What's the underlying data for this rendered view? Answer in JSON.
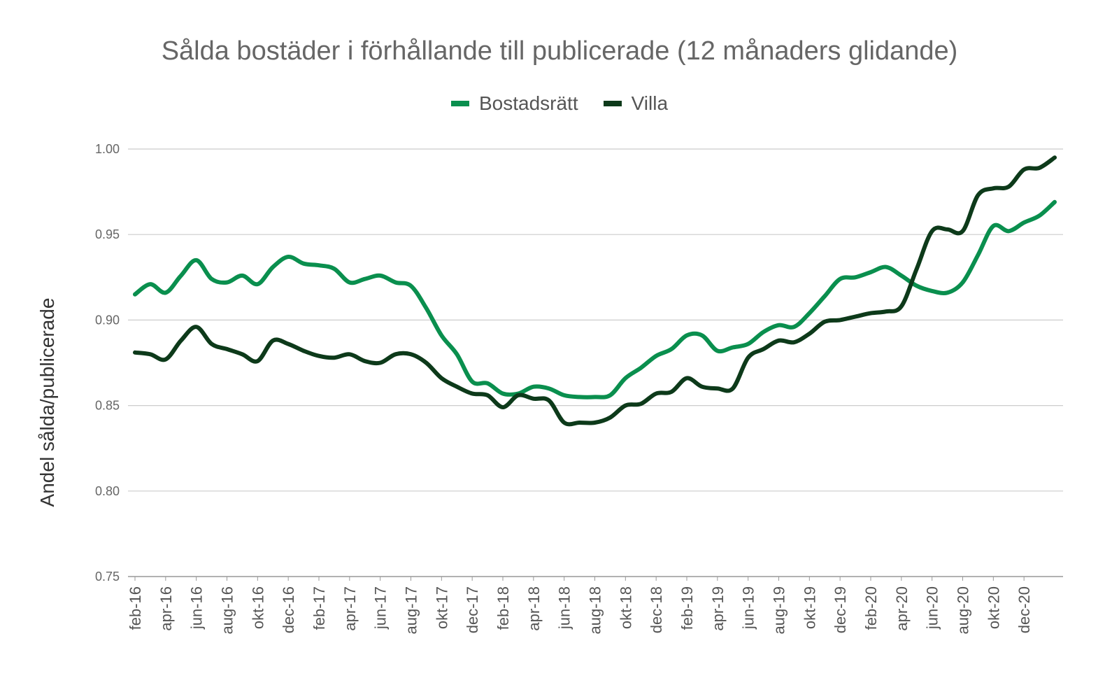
{
  "chart_data": {
    "type": "line",
    "title": "Sålda bostäder i förhållande till publicerade (12 månaders glidande)",
    "xlabel": "",
    "ylabel": "Andel sålda/publicerade",
    "ylim": [
      0.75,
      1.0
    ],
    "yticks": [
      "1.00",
      "0.95",
      "0.90",
      "0.85",
      "0.80",
      "0.75"
    ],
    "grid": true,
    "legend_position": "top",
    "x_tick_labels": [
      "feb-16",
      "apr-16",
      "jun-16",
      "aug-16",
      "okt-16",
      "dec-16",
      "feb-17",
      "apr-17",
      "jun-17",
      "aug-17",
      "okt-17",
      "dec-17",
      "feb-18",
      "apr-18",
      "jun-18",
      "aug-18",
      "okt-18",
      "dec-18",
      "feb-19",
      "apr-19",
      "jun-19",
      "aug-19",
      "okt-19",
      "dec-19",
      "feb-20",
      "apr-20",
      "jun-20",
      "aug-20",
      "okt-20",
      "dec-20"
    ],
    "x": [
      "feb-16",
      "mar-16",
      "apr-16",
      "maj-16",
      "jun-16",
      "jul-16",
      "aug-16",
      "sep-16",
      "okt-16",
      "nov-16",
      "dec-16",
      "jan-17",
      "feb-17",
      "mar-17",
      "apr-17",
      "maj-17",
      "jun-17",
      "jul-17",
      "aug-17",
      "sep-17",
      "okt-17",
      "nov-17",
      "dec-17",
      "jan-18",
      "feb-18",
      "mar-18",
      "apr-18",
      "maj-18",
      "jun-18",
      "jul-18",
      "aug-18",
      "sep-18",
      "okt-18",
      "nov-18",
      "dec-18",
      "jan-19",
      "feb-19",
      "mar-19",
      "apr-19",
      "maj-19",
      "jun-19",
      "jul-19",
      "aug-19",
      "sep-19",
      "okt-19",
      "nov-19",
      "dec-19",
      "jan-20",
      "feb-20",
      "mar-20",
      "apr-20",
      "maj-20",
      "jun-20",
      "jul-20",
      "aug-20",
      "sep-20",
      "okt-20",
      "nov-20",
      "dec-20",
      "jan-21",
      "feb-21"
    ],
    "series": [
      {
        "name": "Bostadsrätt",
        "color": "#0a8f4e",
        "values": [
          0.915,
          0.921,
          0.916,
          0.926,
          0.935,
          0.924,
          0.922,
          0.926,
          0.921,
          0.931,
          0.937,
          0.933,
          0.932,
          0.93,
          0.922,
          0.924,
          0.926,
          0.922,
          0.92,
          0.907,
          0.891,
          0.88,
          0.864,
          0.863,
          0.857,
          0.857,
          0.861,
          0.86,
          0.856,
          0.855,
          0.855,
          0.856,
          0.866,
          0.872,
          0.879,
          0.883,
          0.891,
          0.891,
          0.882,
          0.884,
          0.886,
          0.893,
          0.897,
          0.896,
          0.904,
          0.914,
          0.924,
          0.925,
          0.928,
          0.931,
          0.926,
          0.92,
          0.917,
          0.916,
          0.922,
          0.938,
          0.955,
          0.952,
          0.957,
          0.961,
          0.969
        ]
      },
      {
        "name": "Villa",
        "color": "#0d3a1a",
        "values": [
          0.881,
          0.88,
          0.877,
          0.888,
          0.896,
          0.886,
          0.883,
          0.88,
          0.876,
          0.888,
          0.886,
          0.882,
          0.879,
          0.878,
          0.88,
          0.876,
          0.875,
          0.88,
          0.88,
          0.875,
          0.866,
          0.861,
          0.857,
          0.856,
          0.849,
          0.856,
          0.854,
          0.853,
          0.84,
          0.84,
          0.84,
          0.843,
          0.85,
          0.851,
          0.857,
          0.858,
          0.866,
          0.861,
          0.86,
          0.86,
          0.878,
          0.883,
          0.888,
          0.887,
          0.892,
          0.899,
          0.9,
          0.902,
          0.904,
          0.905,
          0.908,
          0.93,
          0.952,
          0.953,
          0.952,
          0.973,
          0.977,
          0.978,
          0.988,
          0.989,
          0.995
        ]
      }
    ]
  }
}
